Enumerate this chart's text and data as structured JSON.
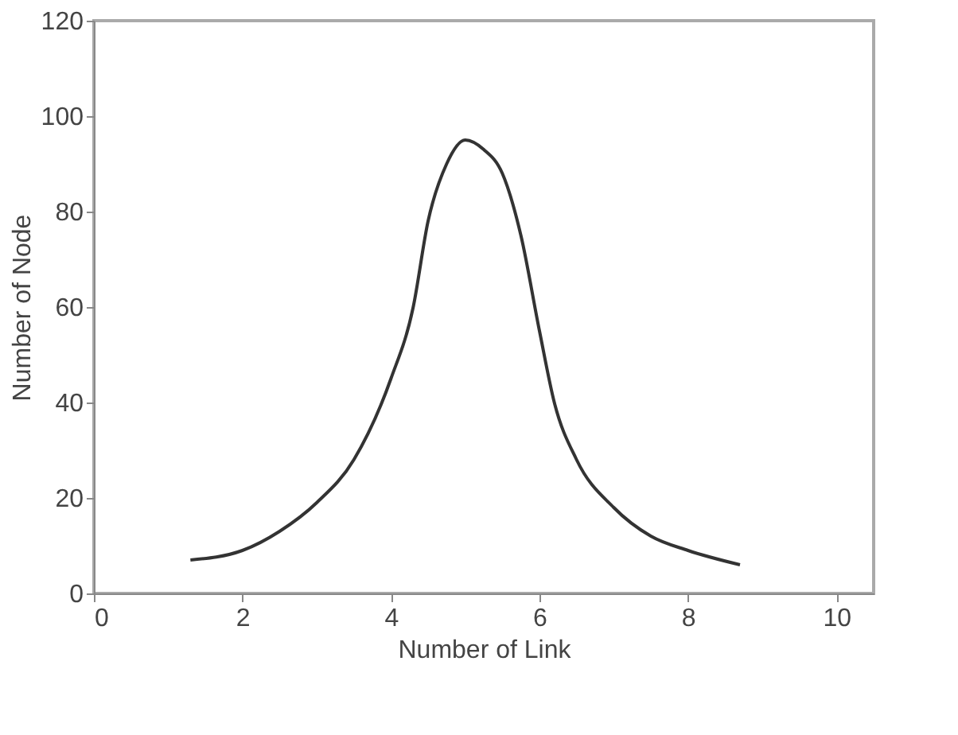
{
  "chart_data": {
    "type": "line",
    "xlabel": "Number of Link",
    "ylabel": "Number of Node",
    "x": [
      1.3,
      2,
      2.5,
      3,
      3.5,
      4,
      4.3,
      4.5,
      4.75,
      5,
      5.25,
      5.5,
      5.75,
      6,
      6.2,
      6.5,
      7,
      7.5,
      8,
      8.7
    ],
    "series": [
      {
        "color": "#333333",
        "values": [
          7,
          9,
          13,
          19,
          28,
          45,
          60,
          78,
          90,
          95,
          93,
          88,
          75,
          55,
          40,
          28,
          18,
          12,
          9,
          6
        ]
      }
    ],
    "xlim": [
      0,
      10.5
    ],
    "xticks": [
      0,
      2,
      4,
      6,
      8,
      10
    ],
    "ylim": [
      0,
      120
    ],
    "yticks": [
      0,
      20,
      40,
      60,
      80,
      100,
      120
    ],
    "grid": false,
    "marker": "none",
    "line_style": "solid"
  }
}
